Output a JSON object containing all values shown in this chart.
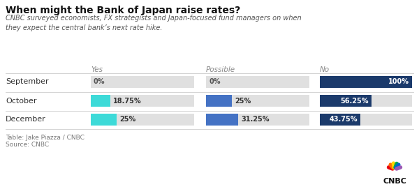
{
  "title": "When might the Bank of Japan raise rates?",
  "subtitle": "CNBC surveyed economists, FX strategists and Japan-focused fund managers on when\nthey expect the central bank’s next rate hike.",
  "rows": [
    "September",
    "October",
    "December"
  ],
  "columns": [
    "Yes",
    "Possible",
    "No"
  ],
  "col_styles": [
    "italic",
    "italic",
    "italic"
  ],
  "values": [
    [
      0,
      0,
      100
    ],
    [
      18.75,
      25,
      56.25
    ],
    [
      25,
      31.25,
      43.75
    ]
  ],
  "labels": [
    [
      "0%",
      "0%",
      "100%"
    ],
    [
      "18.75%",
      "25%",
      "56.25%"
    ],
    [
      "25%",
      "31.25%",
      "43.75%"
    ]
  ],
  "yes_color": "#3DDAD8",
  "possible_color": "#4472C4",
  "no_color": "#1B3A6B",
  "bg_color_bar": "#E0E0E0",
  "background": "#FFFFFF",
  "footer1": "Table: Jake Piazza / CNBC",
  "footer2": "Source: CNBC",
  "title_fontsize": 10,
  "subtitle_fontsize": 7,
  "row_label_fontsize": 8,
  "col_header_fontsize": 7.5,
  "bar_label_fontsize": 7,
  "footer_fontsize": 6.5
}
